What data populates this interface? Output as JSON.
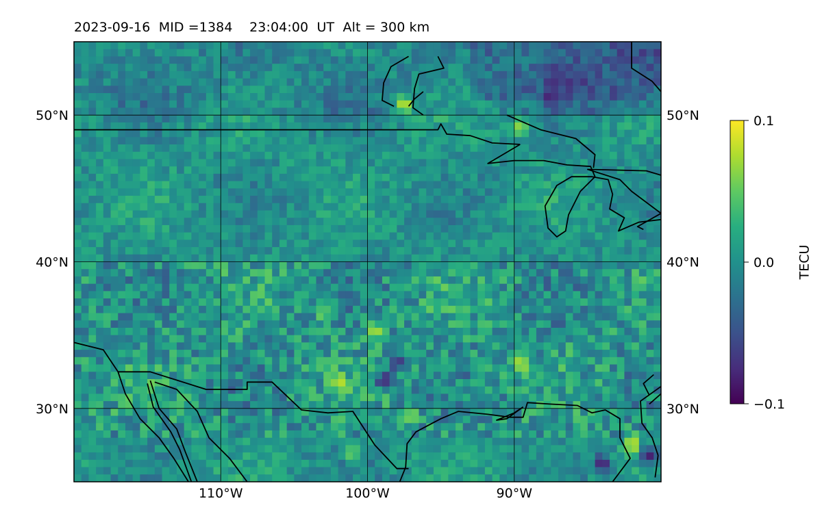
{
  "title": "2023-09-16  MID =1384    23:04:00  UT  Alt = 300 km",
  "chart_data": {
    "type": "heatmap",
    "title": "2023-09-16  MID =1384    23:04:00  UT  Alt = 300 km",
    "xlim": [
      -120,
      -80
    ],
    "ylim": [
      25,
      55
    ],
    "x_ticks": [
      {
        "value": -110,
        "label": "110°W"
      },
      {
        "value": -100,
        "label": "100°W"
      },
      {
        "value": -90,
        "label": "90°W"
      }
    ],
    "y_ticks": [
      {
        "value": 30,
        "label": "30°N"
      },
      {
        "value": 40,
        "label": "40°N"
      },
      {
        "value": 50,
        "label": "50°N"
      }
    ],
    "grid": true,
    "colormap": "viridis",
    "colorbar": {
      "label": "TECU",
      "range": [
        -0.1,
        0.1
      ],
      "ticks": [
        {
          "value": 0.1,
          "label": "0.1"
        },
        {
          "value": 0.0,
          "label": "0.0"
        },
        {
          "value": -0.1,
          "label": "−0.1"
        }
      ]
    },
    "hotspots": [
      {
        "lon": -97.5,
        "lat": 50.7,
        "value": 0.1
      },
      {
        "lon": -89.6,
        "lat": 49.1,
        "value": 0.09
      },
      {
        "lon": -82.0,
        "lat": 27.5,
        "value": 0.1
      },
      {
        "lon": -84.0,
        "lat": 26.2,
        "value": -0.1
      },
      {
        "lon": -97.0,
        "lat": 29.4,
        "value": 0.09
      },
      {
        "lon": -101.9,
        "lat": 31.8,
        "value": 0.09
      },
      {
        "lon": -98.8,
        "lat": 32.0,
        "value": -0.1
      },
      {
        "lon": -99.5,
        "lat": 35.3,
        "value": 0.08
      },
      {
        "lon": -89.5,
        "lat": 33.2,
        "value": 0.08
      },
      {
        "lon": -80.8,
        "lat": 26.8,
        "value": -0.09
      },
      {
        "lon": -101.0,
        "lat": 27.0,
        "value": 0.07
      },
      {
        "lon": -98.0,
        "lat": 33.2,
        "value": -0.08
      },
      {
        "lon": -103.0,
        "lat": 36.5,
        "value": 0.06
      }
    ],
    "coastlines": [
      [
        [
          -120,
          49
        ],
        [
          -95.2,
          49
        ],
        [
          -95.0,
          49.4
        ],
        [
          -94.6,
          48.7
        ],
        [
          -93.0,
          48.6
        ],
        [
          -91.5,
          48.1
        ],
        [
          -89.6,
          48.0
        ]
      ],
      [
        [
          -89.6,
          48.0
        ],
        [
          -91.8,
          46.7
        ],
        [
          -90.0,
          46.9
        ],
        [
          -88.0,
          46.9
        ],
        [
          -86.4,
          46.6
        ],
        [
          -84.8,
          46.5
        ],
        [
          -84.5,
          45.8
        ],
        [
          -85.5,
          44.8
        ],
        [
          -86.3,
          43.2
        ],
        [
          -86.5,
          42.1
        ],
        [
          -87.1,
          41.7
        ],
        [
          -87.7,
          42.3
        ],
        [
          -87.9,
          43.8
        ],
        [
          -87.1,
          45.2
        ],
        [
          -86.1,
          45.8
        ],
        [
          -84.7,
          45.8
        ],
        [
          -83.6,
          45.6
        ],
        [
          -83.3,
          44.6
        ],
        [
          -83.5,
          43.6
        ],
        [
          -82.5,
          43.0
        ],
        [
          -82.9,
          42.1
        ],
        [
          -81.5,
          42.7
        ],
        [
          -79.8,
          42.9
        ],
        [
          -80.0,
          43.3
        ],
        [
          -82.0,
          44.8
        ],
        [
          -82.8,
          45.6
        ],
        [
          -85.0,
          46.3
        ],
        [
          -81.0,
          46.2
        ],
        [
          -80.0,
          45.9
        ]
      ],
      [
        [
          -81.2,
          42.2
        ],
        [
          -81.6,
          42.4
        ],
        [
          -80.0,
          43.3
        ]
      ],
      [
        [
          -90.5,
          50.0
        ],
        [
          -88.2,
          49.0
        ],
        [
          -85.8,
          48.4
        ],
        [
          -84.5,
          47.3
        ],
        [
          -84.6,
          46.4
        ]
      ],
      [
        [
          -80,
          31.5
        ],
        [
          -81.4,
          30.5
        ],
        [
          -81.3,
          29.0
        ],
        [
          -80.6,
          28.0
        ],
        [
          -80.2,
          26.8
        ],
        [
          -80.4,
          25.3
        ]
      ],
      [
        [
          -80,
          31.0
        ],
        [
          -80.8,
          30.3
        ]
      ],
      [
        [
          -83.3,
          25.0
        ],
        [
          -82.1,
          26.6
        ],
        [
          -82.8,
          28.0
        ],
        [
          -82.8,
          29.3
        ],
        [
          -83.8,
          29.9
        ],
        [
          -84.7,
          29.7
        ],
        [
          -85.7,
          30.2
        ],
        [
          -87.6,
          30.3
        ],
        [
          -89.1,
          30.4
        ],
        [
          -89.4,
          29.4
        ],
        [
          -90.3,
          29.4
        ],
        [
          -91.8,
          29.6
        ],
        [
          -93.8,
          29.8
        ],
        [
          -95.0,
          29.3
        ],
        [
          -96.7,
          28.4
        ],
        [
          -97.3,
          27.6
        ],
        [
          -97.4,
          26.0
        ],
        [
          -97.8,
          25.0
        ]
      ],
      [
        [
          -89.4,
          30.1
        ],
        [
          -90.5,
          29.3
        ],
        [
          -91.2,
          29.2
        ],
        [
          -90.0,
          29.7
        ],
        [
          -89.4,
          30.1
        ]
      ],
      [
        [
          -117.0,
          32.5
        ],
        [
          -114.8,
          32.5
        ],
        [
          -111.0,
          31.3
        ],
        [
          -108.2,
          31.3
        ],
        [
          -108.2,
          31.8
        ],
        [
          -106.5,
          31.8
        ],
        [
          -104.5,
          29.9
        ],
        [
          -102.7,
          29.7
        ],
        [
          -101.0,
          29.8
        ],
        [
          -99.5,
          27.5
        ],
        [
          -98.0,
          25.9
        ],
        [
          -97.2,
          25.9
        ]
      ],
      [
        [
          -120,
          34.5
        ],
        [
          -118.0,
          34.0
        ],
        [
          -117.0,
          32.5
        ],
        [
          -116.5,
          31.0
        ],
        [
          -115.5,
          29.3
        ],
        [
          -114.2,
          28.0
        ],
        [
          -113.2,
          26.6
        ],
        [
          -112.2,
          25.0
        ]
      ],
      [
        [
          -114.8,
          31.9
        ],
        [
          -114.2,
          30.0
        ],
        [
          -113.0,
          28.6
        ],
        [
          -112.4,
          27.0
        ],
        [
          -111.6,
          25.0
        ]
      ],
      [
        [
          -115.0,
          31.7
        ],
        [
          -114.6,
          30.1
        ],
        [
          -113.4,
          28.4
        ],
        [
          -112.8,
          27.2
        ],
        [
          -112.0,
          25.0
        ]
      ],
      [
        [
          -114.5,
          31.8
        ],
        [
          -113.0,
          31.3
        ],
        [
          -111.6,
          29.8
        ],
        [
          -110.8,
          28.0
        ],
        [
          -109.4,
          26.6
        ],
        [
          -108.2,
          25.0
        ]
      ],
      [
        [
          -95.2,
          54.0
        ],
        [
          -94.8,
          53.2
        ],
        [
          -96.5,
          52.8
        ],
        [
          -96.8,
          51.8
        ],
        [
          -96.9,
          50.5
        ],
        [
          -96.2,
          50.0
        ]
      ],
      [
        [
          -97.2,
          54.0
        ],
        [
          -98.4,
          53.3
        ],
        [
          -98.9,
          52.2
        ],
        [
          -99.0,
          51.0
        ],
        [
          -98.2,
          50.6
        ]
      ],
      [
        [
          -96.2,
          51.6
        ],
        [
          -96.8,
          51.1
        ],
        [
          -97.2,
          50.6
        ]
      ],
      [
        [
          -82.0,
          55.0
        ],
        [
          -82.0,
          53.2
        ],
        [
          -80.6,
          52.3
        ],
        [
          -80.0,
          51.6
        ]
      ],
      [
        [
          -80.5,
          32.3
        ],
        [
          -81.2,
          31.7
        ],
        [
          -80.8,
          30.9
        ]
      ]
    ]
  }
}
